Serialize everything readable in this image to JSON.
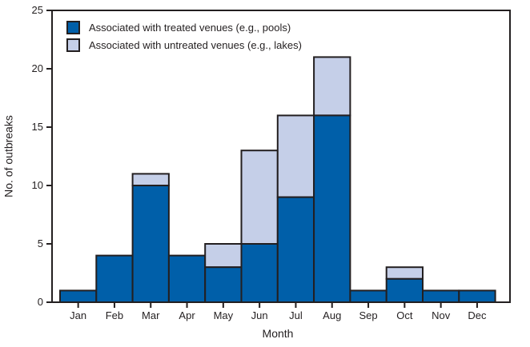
{
  "chart_data": {
    "type": "bar",
    "stacked": true,
    "title": "",
    "xlabel": "Month",
    "ylabel": "No. of outbreaks",
    "categories": [
      "Jan",
      "Feb",
      "Mar",
      "Apr",
      "May",
      "Jun",
      "Jul",
      "Aug",
      "Sep",
      "Oct",
      "Nov",
      "Dec"
    ],
    "series": [
      {
        "name": "Associated with treated venues (e.g., pools)",
        "color": "#005fa9",
        "values": [
          1,
          4,
          10,
          4,
          3,
          5,
          9,
          16,
          1,
          2,
          1,
          1
        ]
      },
      {
        "name": "Associated with untreated venues (e.g., lakes)",
        "color": "#c5cfe8",
        "values": [
          0,
          0,
          1,
          0,
          2,
          8,
          7,
          5,
          0,
          1,
          0,
          0
        ]
      }
    ],
    "totals": [
      1,
      4,
      11,
      4,
      5,
      13,
      16,
      21,
      1,
      3,
      1,
      1
    ],
    "ylim": [
      0,
      25
    ],
    "yticks": [
      0,
      5,
      10,
      15,
      20,
      25
    ],
    "grid": false,
    "legend_position": "top-left",
    "axis_color": "#231f20",
    "bar_border_color": "#231f20",
    "text_color": "#231f20"
  }
}
